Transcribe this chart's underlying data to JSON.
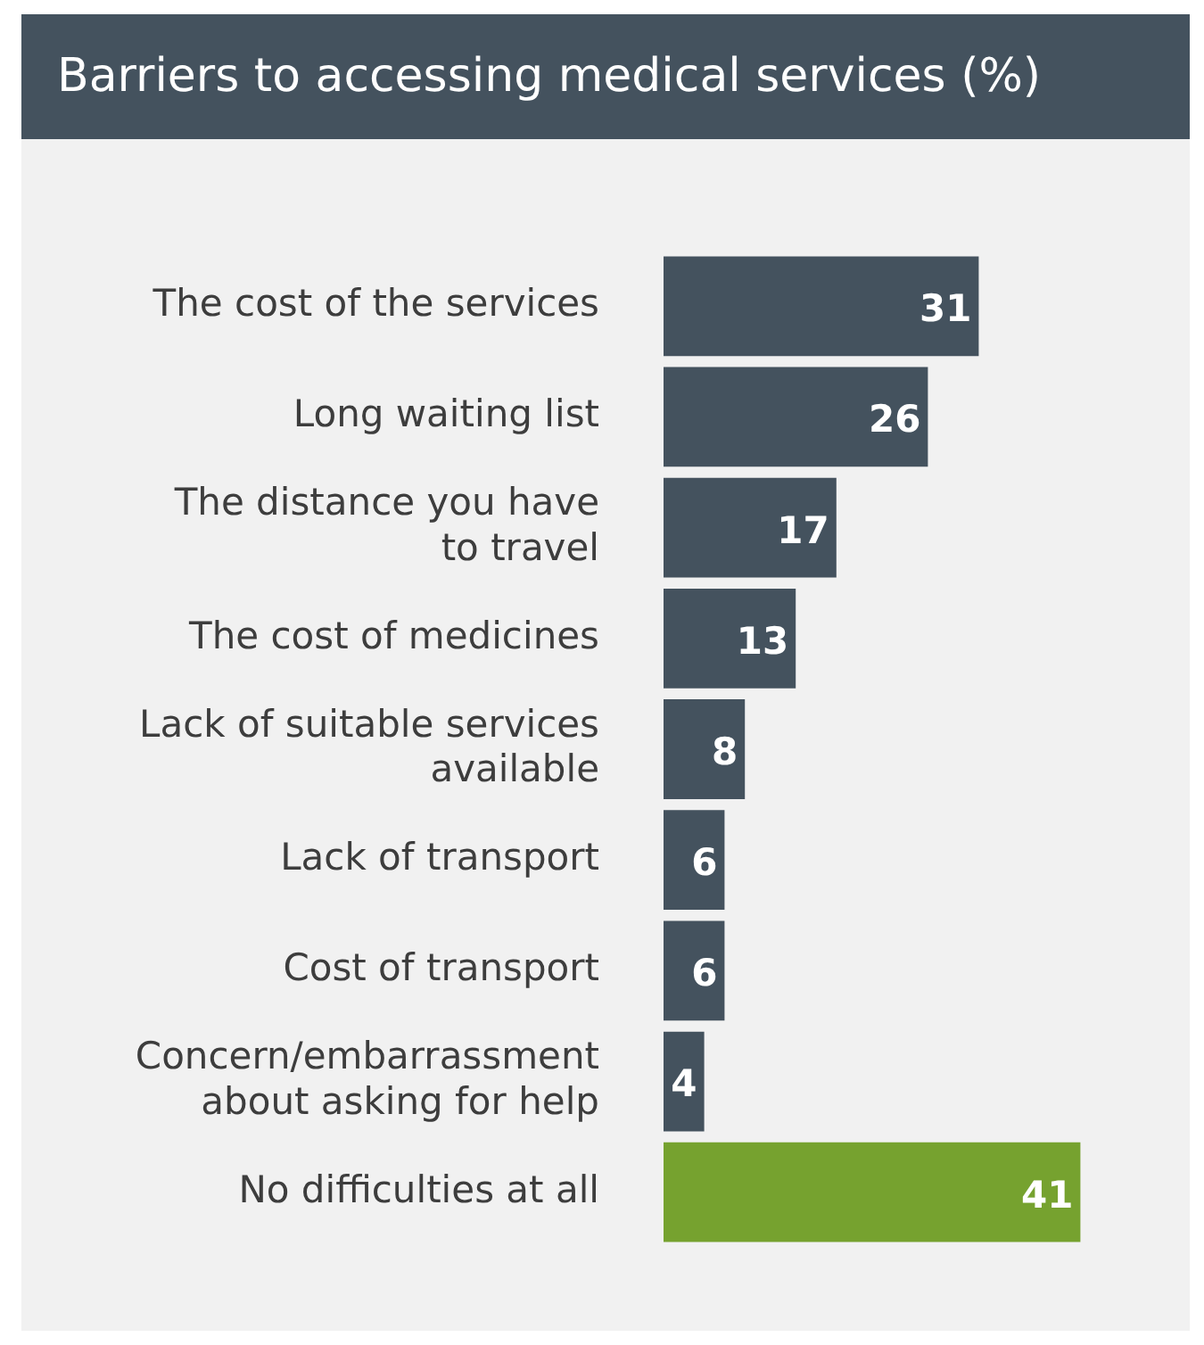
{
  "chart_data": {
    "type": "bar",
    "orientation": "horizontal",
    "title": "Barriers to accessing medical services (%)",
    "categories": [
      "The cost of the services",
      "Long waiting list",
      "The distance you have to travel",
      "The cost of medicines",
      "Lack of suitable services available",
      "Lack of transport",
      "Cost of transport",
      "Concern/embarrassment about asking for help",
      "No difficulties at all"
    ],
    "values": [
      31,
      26,
      17,
      13,
      8,
      6,
      6,
      4,
      41
    ],
    "colors": [
      "#44525e",
      "#44525e",
      "#44525e",
      "#44525e",
      "#44525e",
      "#44525e",
      "#44525e",
      "#44525e",
      "#76a22f"
    ],
    "data_labels": true,
    "tick_labels": "y",
    "legend": false
  }
}
